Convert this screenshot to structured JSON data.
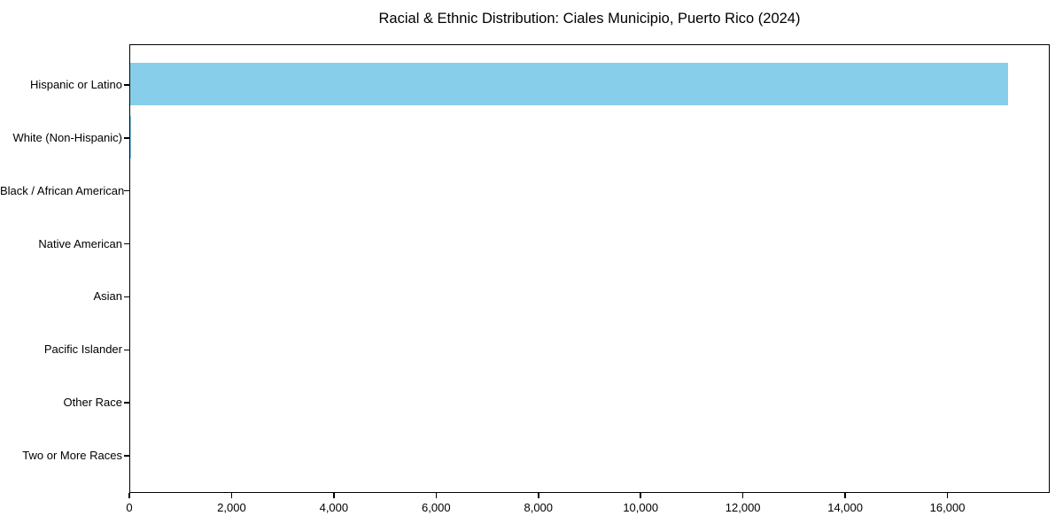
{
  "chart_data": {
    "type": "bar",
    "orientation": "horizontal",
    "title": "Racial & Ethnic Distribution: Ciales Municipio, Puerto Rico (2024)",
    "xlabel": "",
    "ylabel": "",
    "categories": [
      "Hispanic or Latino",
      "White (Non-Hispanic)",
      "Black / African American",
      "Native American",
      "Asian",
      "Pacific Islander",
      "Other Race",
      "Two or More Races"
    ],
    "values": [
      17160,
      20,
      0,
      0,
      0,
      0,
      0,
      0
    ],
    "xlim": [
      0,
      18000
    ],
    "xticks": [
      0,
      2000,
      4000,
      6000,
      8000,
      10000,
      12000,
      14000,
      16000
    ],
    "xtick_labels": [
      "0",
      "2,000",
      "4,000",
      "6,000",
      "8,000",
      "10,000",
      "12,000",
      "14,000",
      "16,000"
    ],
    "bar_color": "#87ceeb",
    "background_color": "#ffffff",
    "axis_color": "#000000",
    "grid": false,
    "legend": null
  }
}
